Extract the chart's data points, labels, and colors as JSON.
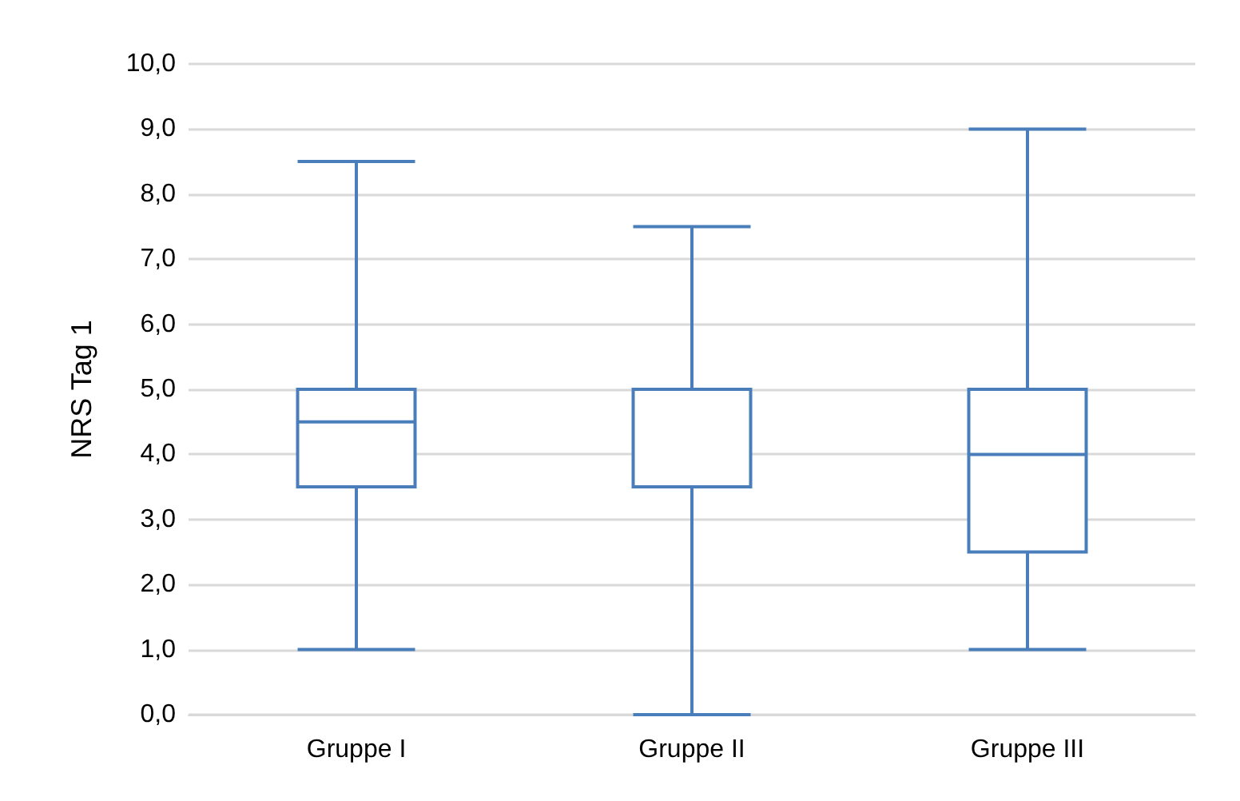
{
  "chart_data": {
    "type": "box",
    "ylabel": "NRS Tag 1",
    "categories": [
      "Gruppe I",
      "Gruppe II",
      "Gruppe III"
    ],
    "color": "#4a7ebb",
    "boxes": [
      {
        "low": 1,
        "q1": 3.5,
        "median": 4.5,
        "q3": 5,
        "high": 8.5
      },
      {
        "low": 0,
        "q1": 3.5,
        "median": 5,
        "q3": 5,
        "high": 7.5
      },
      {
        "low": 1,
        "q1": 2.5,
        "median": 4,
        "q3": 5,
        "high": 9
      }
    ],
    "ylim": [
      0,
      10
    ],
    "yticks": [
      {
        "value": 0,
        "label": "0,0"
      },
      {
        "value": 1,
        "label": "1,0"
      },
      {
        "value": 2,
        "label": "2,0"
      },
      {
        "value": 3,
        "label": "3,0"
      },
      {
        "value": 4,
        "label": "4,0"
      },
      {
        "value": 5,
        "label": "5,0"
      },
      {
        "value": 6,
        "label": "6,0"
      },
      {
        "value": 7,
        "label": "7,0"
      },
      {
        "value": 8,
        "label": "8,0"
      },
      {
        "value": 9,
        "label": "9,0"
      },
      {
        "value": 10,
        "label": "10,0"
      }
    ],
    "grid": "y"
  }
}
